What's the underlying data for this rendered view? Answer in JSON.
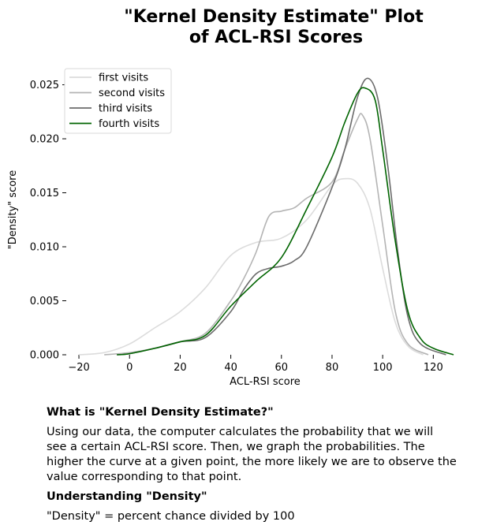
{
  "chart_data": {
    "type": "line",
    "title_lines": [
      "\"Kernel Density Estimate\" Plot",
      "of ACL-RSI Scores"
    ],
    "xlabel": "ACL-RSI score",
    "ylabel": "\"Density\" score",
    "xlim": [
      -25,
      128
    ],
    "ylim": [
      0,
      0.0265
    ],
    "xticks": [
      -20,
      0,
      20,
      40,
      60,
      80,
      100,
      120
    ],
    "xtick_labels": [
      "−20",
      "0",
      "20",
      "40",
      "60",
      "80",
      "100",
      "120"
    ],
    "yticks": [
      0.0,
      0.005,
      0.01,
      0.015,
      0.02,
      0.025
    ],
    "ytick_labels": [
      "0.000",
      "0.005",
      "0.010",
      "0.015",
      "0.020",
      "0.025"
    ],
    "grid": false,
    "legend_position": "top-left",
    "series": [
      {
        "name": "first visits",
        "color": "#dcdcdc",
        "x": [
          -20,
          -10,
          0,
          10,
          20,
          30,
          40,
          50,
          60,
          70,
          80,
          85,
          90,
          95,
          100,
          105,
          110,
          116
        ],
        "y": [
          0.0,
          0.0002,
          0.001,
          0.0025,
          0.004,
          0.0062,
          0.0092,
          0.0104,
          0.0108,
          0.0125,
          0.0157,
          0.0163,
          0.0159,
          0.0135,
          0.008,
          0.003,
          0.0008,
          0.0
        ]
      },
      {
        "name": "second visits",
        "color": "#b4b4b4",
        "x": [
          -10,
          0,
          10,
          20,
          30,
          40,
          45,
          50,
          55,
          60,
          65,
          70,
          80,
          85,
          90,
          92,
          95,
          100,
          105,
          110,
          118
        ],
        "y": [
          0.0,
          0.0002,
          0.0006,
          0.0012,
          0.002,
          0.005,
          0.007,
          0.0095,
          0.0128,
          0.0133,
          0.0136,
          0.0145,
          0.016,
          0.019,
          0.0218,
          0.0222,
          0.02,
          0.012,
          0.004,
          0.001,
          0.0
        ]
      },
      {
        "name": "third visits",
        "color": "#6b6b6b",
        "x": [
          -5,
          0,
          10,
          20,
          30,
          40,
          45,
          50,
          55,
          60,
          65,
          70,
          80,
          85,
          90,
          94,
          98,
          102,
          106,
          110,
          115,
          125
        ],
        "y": [
          0.0,
          0.0001,
          0.0006,
          0.0012,
          0.0016,
          0.004,
          0.006,
          0.0075,
          0.008,
          0.0082,
          0.0087,
          0.01,
          0.0155,
          0.019,
          0.0238,
          0.0256,
          0.0238,
          0.0175,
          0.0095,
          0.0035,
          0.001,
          0.0
        ]
      },
      {
        "name": "fourth visits",
        "color": "#006400",
        "x": [
          -5,
          0,
          10,
          20,
          30,
          40,
          50,
          60,
          70,
          80,
          85,
          90,
          93,
          97,
          100,
          105,
          110,
          115,
          120,
          128
        ],
        "y": [
          0.0,
          0.0001,
          0.0006,
          0.0012,
          0.0018,
          0.0045,
          0.0068,
          0.009,
          0.0135,
          0.0183,
          0.0215,
          0.0242,
          0.0247,
          0.0236,
          0.019,
          0.0105,
          0.004,
          0.0015,
          0.0006,
          0.0
        ]
      }
    ]
  },
  "notes": {
    "heading1": "What is \"Kernel Density Estimate?\"",
    "paragraph1": "Using our data, the computer calculates the probability that we will see a certain ACL-RSI score. Then, we graph the probabilities. The higher the curve at a given point, the more likely we are to observe the value corresponding to that point.",
    "heading2": "Understanding \"Density\"",
    "paragraph2": "\"Density\" = percent chance divided by 100"
  }
}
